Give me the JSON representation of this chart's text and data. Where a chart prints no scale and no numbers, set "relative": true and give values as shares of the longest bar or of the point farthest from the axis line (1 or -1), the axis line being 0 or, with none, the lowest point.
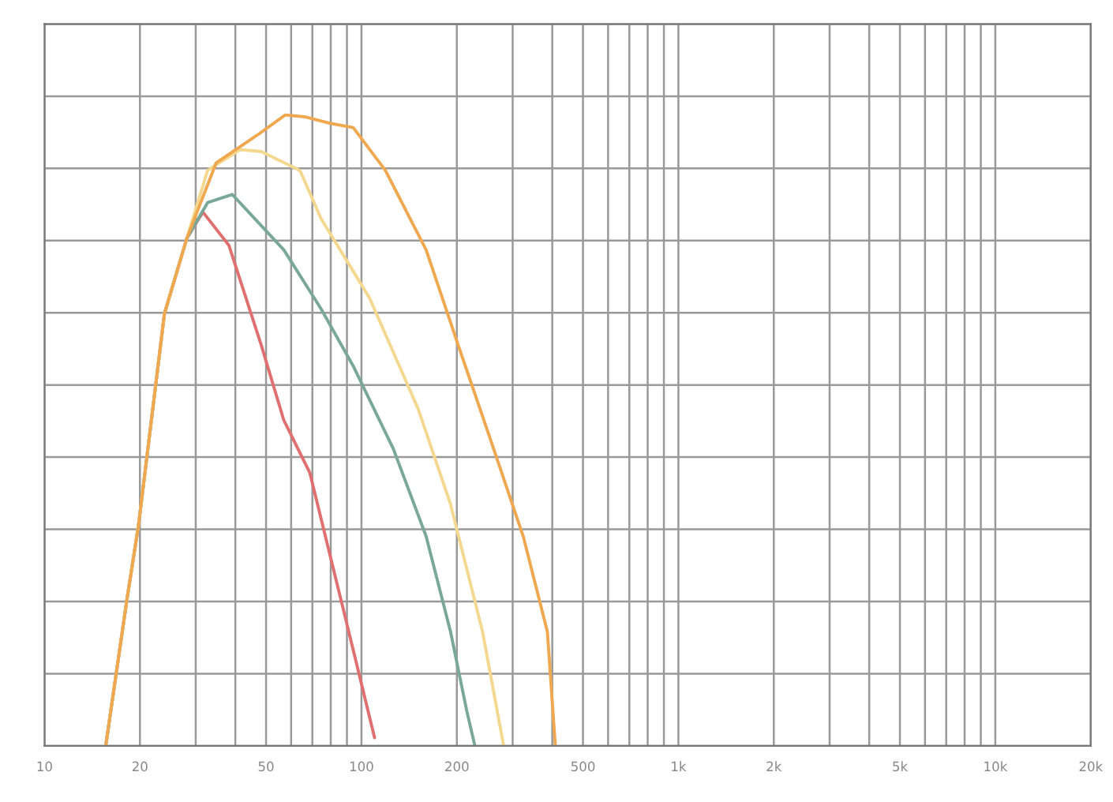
{
  "chart_data": {
    "type": "line",
    "relative": true,
    "log": "x",
    "grid": true,
    "legend": false,
    "marker": "none",
    "line_style": "solid",
    "xlim": [
      10,
      20000
    ],
    "xticks": [
      10,
      20,
      50,
      100,
      200,
      500,
      {
        "value": 1000,
        "label": "1k"
      },
      {
        "value": 2000,
        "label": "2k"
      },
      {
        "value": 5000,
        "label": "5k"
      },
      {
        "value": 10000,
        "label": "10k"
      },
      {
        "value": 20000,
        "label": "20k"
      }
    ],
    "series": [
      {
        "color": "#e07070",
        "x": [
          15.6,
          18.2,
          19.8,
          23.9,
          28.1,
          31.6,
          38.2,
          48.3,
          56.9,
          68.7,
          86.9,
          110
        ],
        "values": [
          0,
          0.232,
          0.35,
          0.685,
          0.804,
          0.846,
          0.793,
          0.635,
          0.516,
          0.433,
          0.224,
          0.013
        ]
      },
      {
        "color": "#7aa898",
        "x": [
          15.6,
          18.2,
          19.8,
          23.9,
          28.1,
          32.7,
          39.1,
          56.9,
          74.5,
          94.2,
          126,
          160,
          191,
          215,
          228
        ],
        "values": [
          0,
          0.232,
          0.35,
          0.685,
          0.804,
          0.861,
          0.874,
          0.786,
          0.693,
          0.602,
          0.471,
          0.332,
          0.181,
          0.055,
          0
        ]
      },
      {
        "color": "#f4d890",
        "x": [
          15.6,
          18.2,
          19.8,
          23.9,
          28.1,
          32.7,
          41.4,
          48.3,
          64,
          74.5,
          106,
          151,
          191,
          241,
          281
        ],
        "values": [
          0,
          0.232,
          0.35,
          0.685,
          0.804,
          0.912,
          0.945,
          0.942,
          0.912,
          0.836,
          0.71,
          0.534,
          0.383,
          0.181,
          0
        ]
      },
      {
        "color": "#f0a850",
        "x": [
          15.6,
          18.2,
          19.8,
          23.9,
          28.1,
          34.8,
          46.6,
          57.5,
          66.2,
          79,
          94.2,
          119,
          160,
          202,
          256,
          324,
          386,
          409
        ],
        "values": [
          0,
          0.232,
          0.35,
          0.685,
          0.804,
          0.924,
          0.967,
          1.0,
          0.997,
          0.987,
          0.98,
          0.912,
          0.786,
          0.635,
          0.484,
          0.332,
          0.181,
          0
        ]
      }
    ]
  }
}
